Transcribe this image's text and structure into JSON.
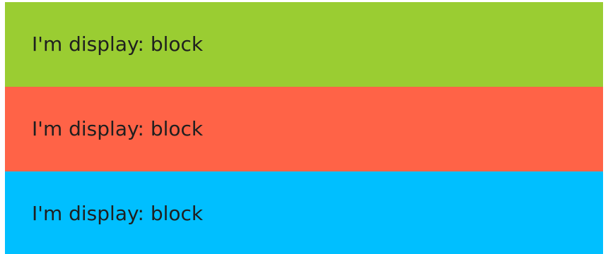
{
  "blocks": [
    {
      "text": "I'm display: block",
      "color": "#9ACD32"
    },
    {
      "text": "I'm display: block",
      "color": "#FF6347"
    },
    {
      "text": "I'm display: block",
      "color": "#00BFFF"
    }
  ]
}
